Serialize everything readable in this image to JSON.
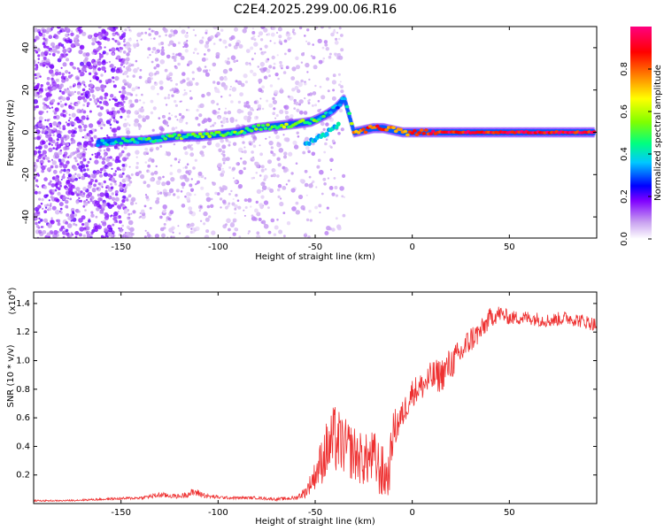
{
  "chart_data": [
    {
      "type": "heatmap",
      "title": "C2E4.2025.299.00.06.R16",
      "xlabel": "Height of straight line (km)",
      "ylabel": "Frequency (Hz)",
      "xlim": [
        -195,
        95
      ],
      "ylim": [
        -50,
        50
      ],
      "x_ticks": [
        -150,
        -100,
        -50,
        0,
        50
      ],
      "y_ticks": [
        -40,
        -20,
        0,
        20,
        40
      ],
      "x_tick_labels": [
        "-150",
        "-100",
        "-50",
        "0",
        "50"
      ],
      "y_tick_labels": [
        "-40",
        "-20",
        "0",
        "20",
        "40"
      ],
      "colorbar": {
        "label": "Normalized spectral amplitude",
        "range": [
          0,
          1
        ],
        "ticks": [
          0.0,
          0.2,
          0.4,
          0.6,
          0.8
        ],
        "tick_labels": [
          "0.0",
          "0.2",
          "0.4",
          "0.6",
          "0.8"
        ],
        "colors": [
          "#ffffff",
          "#c8a0f0",
          "#8000ff",
          "#0000ff",
          "#00c8ff",
          "#00ff80",
          "#80ff00",
          "#ffff00",
          "#ff8000",
          "#ff0000",
          "#ff0080"
        ]
      },
      "ridge": {
        "x": [
          -162,
          -150,
          -140,
          -130,
          -120,
          -110,
          -100,
          -90,
          -80,
          -70,
          -60,
          -52,
          -45,
          -40,
          -35,
          -30,
          -25,
          -20,
          -15,
          -10,
          -5,
          0,
          5,
          10,
          20,
          40,
          60,
          80,
          94
        ],
        "y": [
          -5,
          -4,
          -4,
          -3,
          -2,
          -2,
          -1,
          0,
          2,
          3,
          4,
          5,
          8,
          11,
          16,
          0,
          1,
          2,
          2,
          1,
          0,
          0,
          0,
          0,
          0,
          0,
          0,
          0,
          0
        ],
        "amplitude": [
          0.35,
          0.4,
          0.45,
          0.45,
          0.5,
          0.5,
          0.5,
          0.5,
          0.55,
          0.55,
          0.55,
          0.5,
          0.4,
          0.35,
          0.3,
          0.75,
          0.8,
          0.85,
          0.85,
          0.8,
          0.8,
          0.8,
          0.85,
          0.9,
          0.9,
          0.9,
          0.9,
          0.9,
          0.9
        ]
      }
    },
    {
      "type": "line",
      "xlabel": "Height of straight line (km)",
      "ylabel": "SNR (10 * v/v)",
      "y_scale_label": "(x10",
      "y_scale_exponent": "4",
      "y_scale_close": ")",
      "xlim": [
        -195,
        95
      ],
      "ylim": [
        0,
        1.48
      ],
      "x_ticks": [
        -150,
        -100,
        -50,
        0,
        50
      ],
      "y_ticks": [
        0.2,
        0.4,
        0.6,
        0.8,
        1.0,
        1.2,
        1.4
      ],
      "x_tick_labels": [
        "-150",
        "-100",
        "-50",
        "0",
        "50"
      ],
      "y_tick_labels": [
        "0.2",
        "0.4",
        "0.6",
        "0.8",
        "1.0",
        "1.2",
        "1.4"
      ],
      "series": [
        {
          "name": "SNR",
          "color": "#ee3030",
          "x": [
            -195,
            -180,
            -160,
            -140,
            -130,
            -120,
            -112,
            -105,
            -95,
            -80,
            -70,
            -60,
            -55,
            -50,
            -45,
            -40,
            -35,
            -30,
            -25,
            -20,
            -15,
            -12,
            -10,
            -5,
            0,
            5,
            10,
            15,
            20,
            25,
            30,
            35,
            40,
            45,
            50,
            60,
            70,
            80,
            90,
            95
          ],
          "y": [
            0.02,
            0.02,
            0.03,
            0.04,
            0.06,
            0.05,
            0.08,
            0.05,
            0.04,
            0.04,
            0.03,
            0.04,
            0.08,
            0.2,
            0.35,
            0.45,
            0.4,
            0.35,
            0.3,
            0.32,
            0.2,
            0.2,
            0.5,
            0.62,
            0.78,
            0.82,
            0.88,
            0.9,
            0.98,
            1.05,
            1.15,
            1.2,
            1.3,
            1.33,
            1.3,
            1.3,
            1.28,
            1.3,
            1.27,
            1.25
          ],
          "noise": [
            0.005,
            0.005,
            0.008,
            0.01,
            0.02,
            0.015,
            0.03,
            0.015,
            0.01,
            0.01,
            0.01,
            0.015,
            0.04,
            0.1,
            0.2,
            0.25,
            0.2,
            0.2,
            0.18,
            0.2,
            0.2,
            0.15,
            0.15,
            0.1,
            0.1,
            0.1,
            0.12,
            0.12,
            0.12,
            0.1,
            0.1,
            0.08,
            0.07,
            0.06,
            0.05,
            0.05,
            0.05,
            0.05,
            0.05,
            0.05
          ]
        }
      ]
    }
  ]
}
